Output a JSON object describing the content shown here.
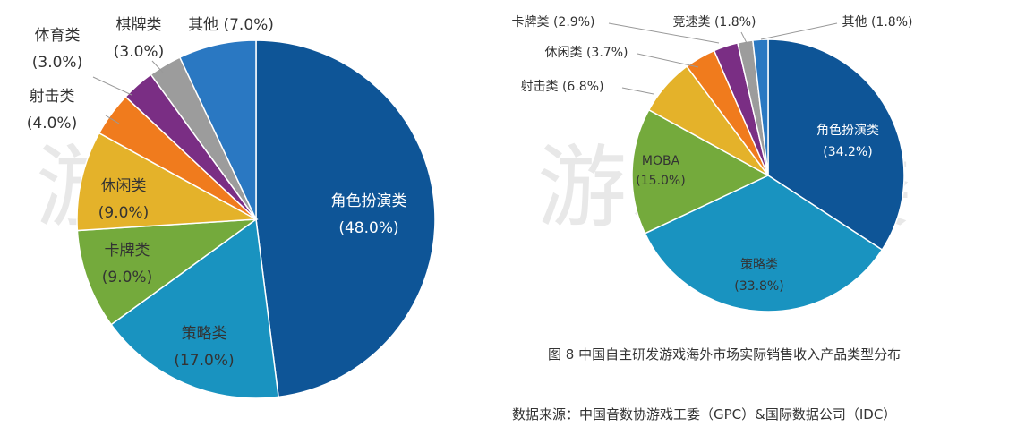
{
  "watermark": "游戏工委",
  "caption": "图 8  中国自主研发游戏海外市场实际销售收入产品类型分布",
  "source": "数据来源：中国音数协游戏工委（GPC）&国际数据公司（IDC）",
  "chart_data": [
    {
      "type": "pie",
      "title": "",
      "slices": [
        {
          "label": "角色扮演类",
          "value": 48.0,
          "display": "(48.0%)",
          "color": "#0e5597"
        },
        {
          "label": "策略类",
          "value": 17.0,
          "display": "(17.0%)",
          "color": "#1993c0"
        },
        {
          "label": "卡牌类",
          "value": 9.0,
          "display": "(9.0%)",
          "color": "#74aa3c"
        },
        {
          "label": "休闲类",
          "value": 9.0,
          "display": "(9.0%)",
          "color": "#e4b22a"
        },
        {
          "label": "射击类",
          "value": 4.0,
          "display": "(4.0%)",
          "color": "#f07b1d"
        },
        {
          "label": "体育类",
          "value": 3.0,
          "display": "(3.0%)",
          "color": "#7a2e84"
        },
        {
          "label": "棋牌类",
          "value": 3.0,
          "display": "(3.0%)",
          "color": "#9c9c9c"
        },
        {
          "label": "其他",
          "value": 7.0,
          "display": "(7.0%)",
          "color": "#2a78c2"
        }
      ]
    },
    {
      "type": "pie",
      "title": "",
      "slices": [
        {
          "label": "角色扮演类",
          "value": 34.2,
          "display": "(34.2%)",
          "color": "#0e5597"
        },
        {
          "label": "策略类",
          "value": 33.8,
          "display": "(33.8%)",
          "color": "#1993c0"
        },
        {
          "label": "MOBA",
          "value": 15.0,
          "display": "(15.0%)",
          "color": "#74aa3c"
        },
        {
          "label": "射击类",
          "value": 6.8,
          "display": "(6.8%)",
          "color": "#e4b22a"
        },
        {
          "label": "休闲类",
          "value": 3.7,
          "display": "(3.7%)",
          "color": "#f07b1d"
        },
        {
          "label": "卡牌类",
          "value": 2.9,
          "display": "(2.9%)",
          "color": "#7a2e84"
        },
        {
          "label": "竞速类",
          "value": 1.8,
          "display": "(1.8%)",
          "color": "#9c9c9c"
        },
        {
          "label": "其他",
          "value": 1.8,
          "display": "(1.8%)",
          "color": "#2a78c2"
        }
      ]
    }
  ]
}
